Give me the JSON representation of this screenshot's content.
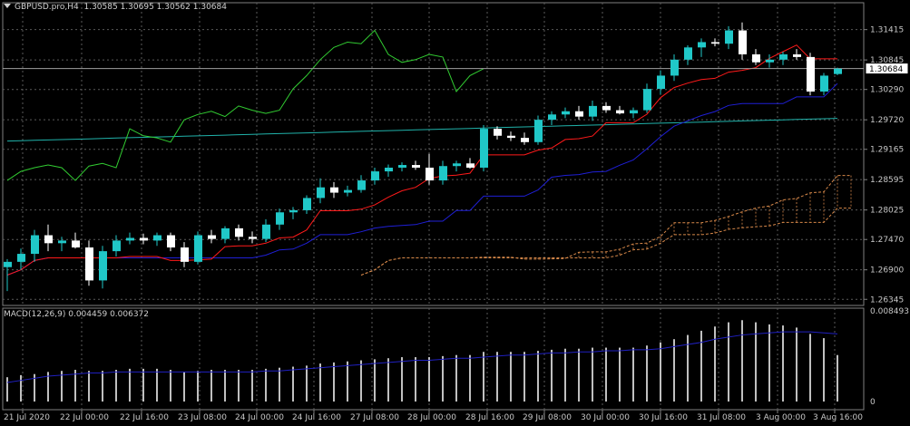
{
  "header": {
    "symbol_timeframe": "GBPUSD.pro,H4",
    "open": "1.30585",
    "high": "1.30695",
    "low": "1.30562",
    "close": "1.30684"
  },
  "price_axis": {
    "labels": [
      "1.31415",
      "1.30845",
      "1.30290",
      "1.29720",
      "1.29165",
      "1.28595",
      "1.28025",
      "1.27470",
      "1.26900",
      "1.26345"
    ],
    "current_price": "1.30684"
  },
  "macd": {
    "label": "MACD(12,26,9)",
    "main_value": "0.004459",
    "signal_value": "0.006372",
    "scale_max": "0.008493",
    "scale_zero": "0"
  },
  "time_axis": {
    "labels": [
      "21 Jul 2020",
      "22 Jul 00:00",
      "22 Jul 16:00",
      "23 Jul 08:00",
      "24 Jul 00:00",
      "24 Jul 16:00",
      "27 Jul 08:00",
      "28 Jul 00:00",
      "28 Jul 16:00",
      "29 Jul 08:00",
      "30 Jul 00:00",
      "30 Jul 16:00",
      "31 Jul 08:00",
      "3 Aug 00:00",
      "3 Aug 16:00"
    ]
  },
  "colors": {
    "background": "#000000",
    "bull_candle": "#20c8c8",
    "bear_candle": "#ffffff",
    "tenkan": "#ff1a1a",
    "kijun": "#1f1fd6",
    "chikou": "#32cd32",
    "ma_line": "#20b2aa",
    "cloud": "#d8894a",
    "macd_hist": "#c0c0c0",
    "macd_signal": "#2020c0",
    "grid": "#5a5a5a"
  },
  "chart_data": {
    "type": "candlestick",
    "symbol": "GBPUSD.pro",
    "timeframe": "H4",
    "ylim": [
      1.2623,
      1.3175
    ],
    "candles": [
      {
        "o": 1.2695,
        "h": 1.271,
        "l": 1.265,
        "c": 1.2705
      },
      {
        "o": 1.2705,
        "h": 1.273,
        "l": 1.269,
        "c": 1.272
      },
      {
        "o": 1.272,
        "h": 1.2765,
        "l": 1.2705,
        "c": 1.2755
      },
      {
        "o": 1.2755,
        "h": 1.2775,
        "l": 1.2725,
        "c": 1.274
      },
      {
        "o": 1.274,
        "h": 1.2752,
        "l": 1.2725,
        "c": 1.2745
      },
      {
        "o": 1.2745,
        "h": 1.276,
        "l": 1.273,
        "c": 1.2732
      },
      {
        "o": 1.2732,
        "h": 1.2745,
        "l": 1.266,
        "c": 1.267
      },
      {
        "o": 1.267,
        "h": 1.2735,
        "l": 1.2655,
        "c": 1.2725
      },
      {
        "o": 1.2725,
        "h": 1.2755,
        "l": 1.2715,
        "c": 1.2745
      },
      {
        "o": 1.2745,
        "h": 1.276,
        "l": 1.2738,
        "c": 1.275
      },
      {
        "o": 1.275,
        "h": 1.2758,
        "l": 1.2738,
        "c": 1.2745
      },
      {
        "o": 1.2745,
        "h": 1.276,
        "l": 1.2735,
        "c": 1.2755
      },
      {
        "o": 1.2755,
        "h": 1.276,
        "l": 1.2725,
        "c": 1.2732
      },
      {
        "o": 1.2732,
        "h": 1.2742,
        "l": 1.2695,
        "c": 1.2705
      },
      {
        "o": 1.2705,
        "h": 1.2762,
        "l": 1.27,
        "c": 1.2755
      },
      {
        "o": 1.2755,
        "h": 1.2765,
        "l": 1.274,
        "c": 1.2748
      },
      {
        "o": 1.2748,
        "h": 1.2772,
        "l": 1.274,
        "c": 1.2768
      },
      {
        "o": 1.2768,
        "h": 1.2775,
        "l": 1.2745,
        "c": 1.2752
      },
      {
        "o": 1.2752,
        "h": 1.2762,
        "l": 1.274,
        "c": 1.2748
      },
      {
        "o": 1.2748,
        "h": 1.2785,
        "l": 1.2742,
        "c": 1.2775
      },
      {
        "o": 1.2775,
        "h": 1.2805,
        "l": 1.2765,
        "c": 1.2798
      },
      {
        "o": 1.2798,
        "h": 1.2808,
        "l": 1.2785,
        "c": 1.2802
      },
      {
        "o": 1.2802,
        "h": 1.283,
        "l": 1.2795,
        "c": 1.2825
      },
      {
        "o": 1.2825,
        "h": 1.2862,
        "l": 1.2815,
        "c": 1.2845
      },
      {
        "o": 1.2845,
        "h": 1.2855,
        "l": 1.2825,
        "c": 1.2835
      },
      {
        "o": 1.2835,
        "h": 1.2848,
        "l": 1.2828,
        "c": 1.284
      },
      {
        "o": 1.284,
        "h": 1.2868,
        "l": 1.2835,
        "c": 1.2858
      },
      {
        "o": 1.2858,
        "h": 1.2882,
        "l": 1.285,
        "c": 1.2875
      },
      {
        "o": 1.2875,
        "h": 1.2888,
        "l": 1.2865,
        "c": 1.2882
      },
      {
        "o": 1.2882,
        "h": 1.2892,
        "l": 1.2875,
        "c": 1.2887
      },
      {
        "o": 1.2887,
        "h": 1.2895,
        "l": 1.2878,
        "c": 1.2882
      },
      {
        "o": 1.2882,
        "h": 1.2908,
        "l": 1.285,
        "c": 1.2858
      },
      {
        "o": 1.2858,
        "h": 1.2895,
        "l": 1.285,
        "c": 1.2885
      },
      {
        "o": 1.2885,
        "h": 1.2895,
        "l": 1.2875,
        "c": 1.289
      },
      {
        "o": 1.289,
        "h": 1.29,
        "l": 1.288,
        "c": 1.2882
      },
      {
        "o": 1.2882,
        "h": 1.2962,
        "l": 1.2875,
        "c": 1.2955
      },
      {
        "o": 1.2955,
        "h": 1.296,
        "l": 1.2935,
        "c": 1.2942
      },
      {
        "o": 1.2942,
        "h": 1.295,
        "l": 1.2932,
        "c": 1.2938
      },
      {
        "o": 1.2938,
        "h": 1.2948,
        "l": 1.2925,
        "c": 1.293
      },
      {
        "o": 1.293,
        "h": 1.298,
        "l": 1.2925,
        "c": 1.2972
      },
      {
        "o": 1.2972,
        "h": 1.2988,
        "l": 1.2962,
        "c": 1.2982
      },
      {
        "o": 1.2982,
        "h": 1.2995,
        "l": 1.2975,
        "c": 1.2988
      },
      {
        "o": 1.2988,
        "h": 1.2998,
        "l": 1.2972,
        "c": 1.2978
      },
      {
        "o": 1.2978,
        "h": 1.3008,
        "l": 1.297,
        "c": 1.2998
      },
      {
        "o": 1.2998,
        "h": 1.3005,
        "l": 1.2985,
        "c": 1.299
      },
      {
        "o": 1.299,
        "h": 1.2998,
        "l": 1.2982,
        "c": 1.2984
      },
      {
        "o": 1.2984,
        "h": 1.2995,
        "l": 1.2975,
        "c": 1.299
      },
      {
        "o": 1.299,
        "h": 1.304,
        "l": 1.2985,
        "c": 1.303
      },
      {
        "o": 1.303,
        "h": 1.3065,
        "l": 1.302,
        "c": 1.3055
      },
      {
        "o": 1.3055,
        "h": 1.3095,
        "l": 1.3045,
        "c": 1.3085
      },
      {
        "o": 1.3085,
        "h": 1.3112,
        "l": 1.3075,
        "c": 1.3108
      },
      {
        "o": 1.3108,
        "h": 1.3125,
        "l": 1.309,
        "c": 1.3118
      },
      {
        "o": 1.3118,
        "h": 1.3125,
        "l": 1.311,
        "c": 1.3115
      },
      {
        "o": 1.3115,
        "h": 1.3148,
        "l": 1.3105,
        "c": 1.314
      },
      {
        "o": 1.314,
        "h": 1.3155,
        "l": 1.3085,
        "c": 1.3095
      },
      {
        "o": 1.3095,
        "h": 1.3105,
        "l": 1.3075,
        "c": 1.308
      },
      {
        "o": 1.308,
        "h": 1.3095,
        "l": 1.307,
        "c": 1.3085
      },
      {
        "o": 1.3085,
        "h": 1.31,
        "l": 1.3075,
        "c": 1.3095
      },
      {
        "o": 1.3095,
        "h": 1.3105,
        "l": 1.3085,
        "c": 1.309
      },
      {
        "o": 1.309,
        "h": 1.3098,
        "l": 1.3018,
        "c": 1.3025
      },
      {
        "o": 1.3025,
        "h": 1.306,
        "l": 1.3018,
        "c": 1.3055
      },
      {
        "o": 1.3058,
        "h": 1.307,
        "l": 1.3056,
        "c": 1.3068
      }
    ],
    "macd_histogram": [
      0.0023,
      0.0025,
      0.0026,
      0.0028,
      0.0029,
      0.003,
      0.0029,
      0.0029,
      0.003,
      0.0031,
      0.0031,
      0.0031,
      0.003,
      0.0028,
      0.0029,
      0.003,
      0.003,
      0.003,
      0.003,
      0.0031,
      0.0032,
      0.0033,
      0.0034,
      0.0036,
      0.0037,
      0.0038,
      0.0039,
      0.004,
      0.0041,
      0.0042,
      0.0042,
      0.0042,
      0.0043,
      0.0044,
      0.0044,
      0.0047,
      0.0047,
      0.0047,
      0.0047,
      0.0048,
      0.0049,
      0.005,
      0.005,
      0.0051,
      0.0051,
      0.0051,
      0.0051,
      0.0053,
      0.0056,
      0.0059,
      0.0063,
      0.0067,
      0.0071,
      0.0075,
      0.0077,
      0.0075,
      0.0073,
      0.0072,
      0.007,
      0.0064,
      0.006,
      0.0044
    ],
    "macd_signal": [
      0.0018,
      0.002,
      0.0022,
      0.0024,
      0.0025,
      0.0026,
      0.0027,
      0.0027,
      0.0028,
      0.0028,
      0.0028,
      0.0028,
      0.0028,
      0.0028,
      0.0028,
      0.0028,
      0.0028,
      0.0028,
      0.0028,
      0.0029,
      0.0029,
      0.003,
      0.0031,
      0.0032,
      0.0033,
      0.0034,
      0.0035,
      0.0036,
      0.0037,
      0.0038,
      0.0039,
      0.0039,
      0.004,
      0.0041,
      0.0041,
      0.0042,
      0.0043,
      0.0044,
      0.0044,
      0.0045,
      0.0046,
      0.0046,
      0.0047,
      0.0047,
      0.0048,
      0.0048,
      0.0049,
      0.0049,
      0.005,
      0.0052,
      0.0054,
      0.0056,
      0.0059,
      0.0061,
      0.0063,
      0.0064,
      0.0065,
      0.0066,
      0.0066,
      0.0066,
      0.0065,
      0.0064
    ]
  }
}
